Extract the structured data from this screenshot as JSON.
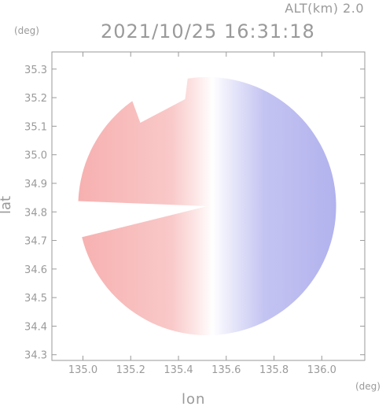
{
  "header": {
    "alt": "ALT(km) 2.0",
    "datetime": "2021/10/25 16:31:18"
  },
  "chart_data": {
    "type": "heatmap",
    "title": "2021/10/25 16:31:18",
    "subtitle": "ALT(km) 2.0",
    "xlabel": "lon",
    "ylabel": "lat",
    "x_unit": "(deg)",
    "y_unit": "(deg)",
    "xlim": [
      134.87,
      136.18
    ],
    "ylim": [
      34.28,
      35.36
    ],
    "x_ticks": [
      135.0,
      135.2,
      135.4,
      135.6,
      135.8,
      136.0
    ],
    "x_tick_labels": [
      "135.0",
      "135.2",
      "135.4",
      "135.6",
      "135.8",
      "136.0"
    ],
    "y_ticks": [
      34.3,
      34.4,
      34.5,
      34.6,
      34.7,
      34.8,
      34.9,
      35.0,
      35.1,
      35.2,
      35.3
    ],
    "y_tick_labels": [
      "34.3",
      "34.4",
      "34.5",
      "34.6",
      "34.7",
      "34.8",
      "34.9",
      "35.0",
      "35.1",
      "35.2",
      "35.3"
    ],
    "radar_center": {
      "lon": 135.52,
      "lat": 34.82
    },
    "radar_radius_deg": 0.54,
    "colors": {
      "receding": "#f7b8b8",
      "approaching": "#b8b8f2",
      "near_zero": "#ffffff",
      "axis": "#9a9a9a"
    },
    "grid": false
  }
}
